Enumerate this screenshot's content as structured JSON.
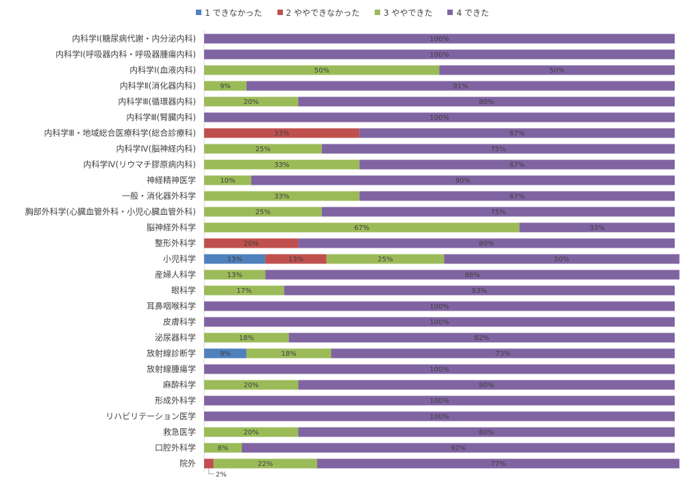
{
  "chart_data": {
    "type": "bar",
    "orientation": "horizontal",
    "stacked": "percent",
    "legend_position": "top",
    "grid": false,
    "xlim": [
      0,
      100
    ],
    "categories": [
      "内科学Ⅰ(糖尿病代謝・内分泌内科)",
      "内科学Ⅰ(呼吸器内科・呼吸器腫瘍内科)",
      "内科学Ⅰ(血液内科)",
      "内科学Ⅱ(消化器内科)",
      "内科学Ⅲ(循環器内科)",
      "内科学Ⅲ(腎臓内科)",
      "内科学Ⅲ・地域総合医療科学(総合診療科)",
      "内科学Ⅳ(脳神経内科)",
      "内科学Ⅳ(リウマチ膠原病内科)",
      "神経精神医学",
      "一般・消化器外科学",
      "胸部外科学(心臓血管外科・小児心臓血管外科)",
      "脳神経外科学",
      "整形外科学",
      "小児科学",
      "産婦人科学",
      "眼科学",
      "耳鼻咽喉科学",
      "皮膚科学",
      "泌尿器科学",
      "放射線診断学",
      "放射線腫瘍学",
      "麻酔科学",
      "形成外科学",
      "リハビリテーション医学",
      "救急医学",
      "口腔外科学",
      "院外"
    ],
    "series": [
      {
        "name": "1 できなかった",
        "color": "#4F81BD",
        "values": [
          0,
          0,
          0,
          0,
          0,
          0,
          0,
          0,
          0,
          0,
          0,
          0,
          0,
          0,
          13,
          0,
          0,
          0,
          0,
          0,
          9,
          0,
          0,
          0,
          0,
          0,
          0,
          0
        ]
      },
      {
        "name": "2 ややできなかった",
        "color": "#C0504D",
        "values": [
          0,
          0,
          0,
          0,
          0,
          0,
          33,
          0,
          0,
          0,
          0,
          0,
          0,
          20,
          13,
          0,
          0,
          0,
          0,
          0,
          0,
          0,
          0,
          0,
          0,
          0,
          0,
          2
        ]
      },
      {
        "name": "3 ややできた",
        "color": "#9BBB59",
        "values": [
          0,
          0,
          50,
          9,
          20,
          0,
          0,
          25,
          33,
          10,
          33,
          25,
          67,
          0,
          25,
          13,
          17,
          0,
          0,
          18,
          18,
          0,
          20,
          0,
          0,
          20,
          8,
          22
        ]
      },
      {
        "name": "4 できた",
        "color": "#8064A2",
        "values": [
          100,
          100,
          50,
          91,
          80,
          100,
          67,
          75,
          67,
          90,
          67,
          75,
          33,
          80,
          50,
          88,
          83,
          100,
          100,
          82,
          73,
          100,
          80,
          100,
          100,
          80,
          92,
          77
        ]
      }
    ],
    "value_suffix": "%"
  }
}
